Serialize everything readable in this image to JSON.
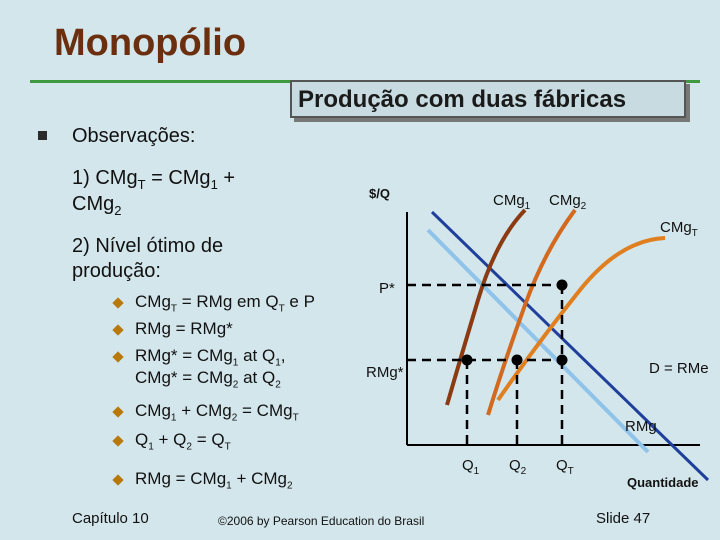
{
  "slide": {
    "title": "Monopólio",
    "subtitle": "Produção com duas fábricas",
    "obs_heading": "Observações:",
    "item1_pre": "1)    CMg",
    "item1_line2": "CMg",
    "item2_line1": "2)    Nível ótimo de",
    "item2_line2": "produção:",
    "b1": "CMg",
    "b2": "RMg = RMg*",
    "b3": "RMg* = CMg",
    "b4": "CMg",
    "b5": "Q",
    "b6": "RMg = CMg"
  },
  "chart": {
    "ylabel": "$/Q",
    "xlabel": "Quantidade",
    "p_star": "P*",
    "rmg_star": "RMg",
    "demand": "D = RMe",
    "rmg": "RMg",
    "cmg1": "CMg",
    "cmg2": "CMg",
    "cmgt": "CMg",
    "q1": "Q",
    "q2": "Q",
    "qt": "Q",
    "colors": {
      "cmg1": "#8b3a12",
      "cmg2": "#d2691e",
      "cmgt": "#e07f1f",
      "demand": "#1f3f9a",
      "rmg": "#8fc3ea"
    }
  },
  "footer": {
    "chapter": "Capítulo 10",
    "copyright": "©2006 by Pearson Education do Brasil",
    "slide_no": "Slide 47"
  }
}
